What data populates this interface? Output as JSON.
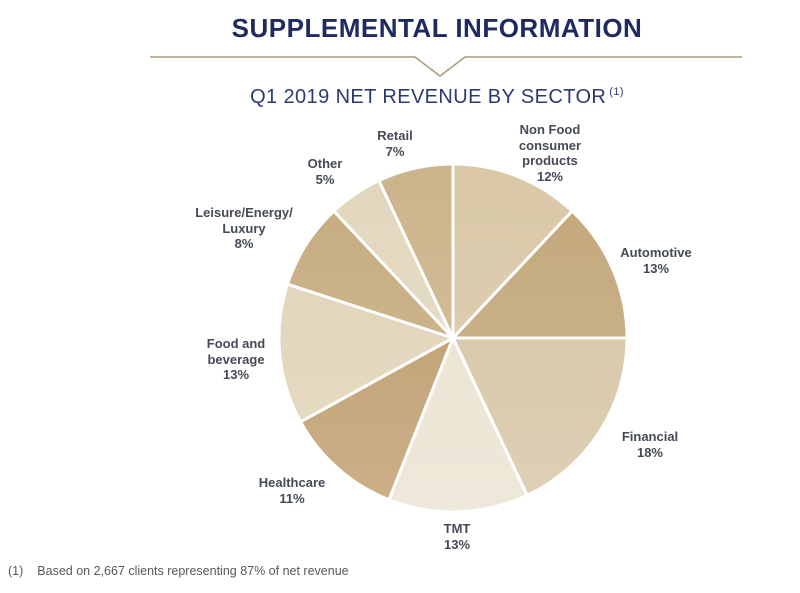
{
  "header": {
    "title": "SUPPLEMENTAL INFORMATION",
    "subtitle": "Q1 2019 NET REVENUE BY SECTOR",
    "note_ref": "(1)"
  },
  "footnote": {
    "marker": "(1)",
    "text": "Based on 2,667 clients representing 87% of net revenue"
  },
  "colors": {
    "title_color": "#1f2a60",
    "subtitle_color": "#2c3a74",
    "label_color": "#454a57",
    "footnote_color": "#57585a",
    "divider_color": "#a89a7b",
    "slice_separator": "#ffffff",
    "background": "#ffffff"
  },
  "chart_data": {
    "type": "pie",
    "title": "Q1 2019 NET REVENUE BY SECTOR",
    "unit": "percent of net revenue",
    "start_angle_deg": 0,
    "direction": "clockwise",
    "total": 100,
    "legend_position": "labels-around-pie",
    "slices": [
      {
        "label": "Non Food consumer products",
        "value": 12,
        "color": "#d9c7a6"
      },
      {
        "label": "Automotive",
        "value": 13,
        "color": "#c2a678"
      },
      {
        "label": "Financial",
        "value": 18,
        "color": "#d5c3a2"
      },
      {
        "label": "TMT",
        "value": 13,
        "color": "#eae2d0"
      },
      {
        "label": "Healthcare",
        "value": 11,
        "color": "#bc9a68"
      },
      {
        "label": "Food and beverage",
        "value": 13,
        "color": "#dfd2b6"
      },
      {
        "label": "Leisure/Energy/Luxury",
        "value": 8,
        "color": "#c5aa7d"
      },
      {
        "label": "Other",
        "value": 5,
        "color": "#e2d6bd"
      },
      {
        "label": "Retail",
        "value": 7,
        "color": "#cdb38a"
      }
    ]
  },
  "slice_labels": {
    "non_food": "Non Food\nconsumer\nproducts\n12%",
    "automotive": "Automotive\n13%",
    "financial": "Financial\n18%",
    "tmt": "TMT\n13%",
    "healthcare": "Healthcare\n11%",
    "food_beverage": "Food and\nbeverage\n13%",
    "leisure": "Leisure/Energy/\nLuxury\n8%",
    "other": "Other\n5%",
    "retail": "Retail\n7%"
  }
}
